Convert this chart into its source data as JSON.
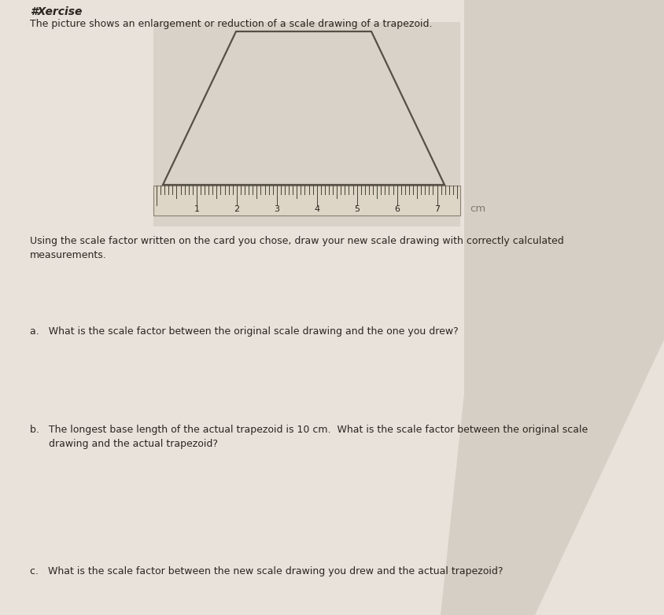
{
  "background_color": "#e8e2da",
  "image_box_color": "#ddd8d0",
  "header_text": "#Xercise",
  "line1": "The picture shows an enlargement or reduction of a scale drawing of a trapezoid.",
  "line2": "Using the scale factor written on the card you chose, draw your new scale drawing with correctly calculated",
  "line3": "measurements.",
  "question_a": "a.   What is the scale factor between the original scale drawing and the one you drew?",
  "question_b1": "b.   The longest base length of the actual trapezoid is 10 cm.  What is the scale factor between the original scale",
  "question_b2": "      drawing and the actual trapezoid?",
  "question_c": "c.   What is the scale factor between the new scale drawing you drew and the actual trapezoid?",
  "cm_label": "cm",
  "text_color": "#2a2520",
  "trapezoid_color": "#555045",
  "ruler_face_color": "#ddd5c5",
  "ruler_tick_color": "#444438"
}
